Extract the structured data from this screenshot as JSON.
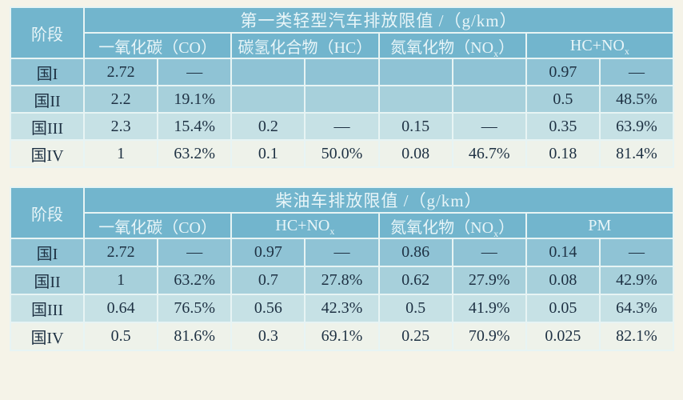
{
  "colors": {
    "page_bg": "#f5f3e8",
    "header_bg": "#72b5cd",
    "row1_bg": "#8fc3d5",
    "row2_bg": "#a7d0db",
    "row3_bg": "#c6e1e5",
    "row4_bg": "#eef2ea",
    "border": "#e7f4f4",
    "header_text": "#e8f5f8",
    "cell_text": "#1e3143"
  },
  "tables": [
    {
      "title": "第一类轻型汽车排放限值 /（g/km）",
      "stage_header": "阶段",
      "groups": [
        {
          "pre": "一氧化碳（CO）",
          "sub": "",
          "post": ""
        },
        {
          "pre": "碳氢化合物（HC）",
          "sub": "",
          "post": ""
        },
        {
          "pre": "氮氧化物（NO",
          "sub": "x",
          "post": "）"
        },
        {
          "pre": "HC+NO",
          "sub": "x",
          "post": ""
        }
      ],
      "rows": [
        {
          "stage": "国I",
          "cells": [
            "2.72",
            "—",
            "",
            "",
            "",
            "",
            "0.97",
            "—"
          ]
        },
        {
          "stage": "国II",
          "cells": [
            "2.2",
            "19.1%",
            "",
            "",
            "",
            "",
            "0.5",
            "48.5%"
          ]
        },
        {
          "stage": "国III",
          "cells": [
            "2.3",
            "15.4%",
            "0.2",
            "—",
            "0.15",
            "—",
            "0.35",
            "63.9%"
          ]
        },
        {
          "stage": "国IV",
          "cells": [
            "1",
            "63.2%",
            "0.1",
            "50.0%",
            "0.08",
            "46.7%",
            "0.18",
            "81.4%"
          ]
        }
      ]
    },
    {
      "title": "柴油车排放限值 /（g/km）",
      "stage_header": "阶段",
      "groups": [
        {
          "pre": "一氧化碳（CO）",
          "sub": "",
          "post": ""
        },
        {
          "pre": "HC+NO",
          "sub": "x",
          "post": ""
        },
        {
          "pre": "氮氧化物（NO",
          "sub": "x",
          "post": "）"
        },
        {
          "pre": "PM",
          "sub": "",
          "post": ""
        }
      ],
      "rows": [
        {
          "stage": "国I",
          "cells": [
            "2.72",
            "—",
            "0.97",
            "—",
            "0.86",
            "—",
            "0.14",
            "—"
          ]
        },
        {
          "stage": "国II",
          "cells": [
            "1",
            "63.2%",
            "0.7",
            "27.8%",
            "0.62",
            "27.9%",
            "0.08",
            "42.9%"
          ]
        },
        {
          "stage": "国III",
          "cells": [
            "0.64",
            "76.5%",
            "0.56",
            "42.3%",
            "0.5",
            "41.9%",
            "0.05",
            "64.3%"
          ]
        },
        {
          "stage": "国IV",
          "cells": [
            "0.5",
            "81.6%",
            "0.3",
            "69.1%",
            "0.25",
            "70.9%",
            "0.025",
            "82.1%"
          ]
        }
      ]
    }
  ]
}
